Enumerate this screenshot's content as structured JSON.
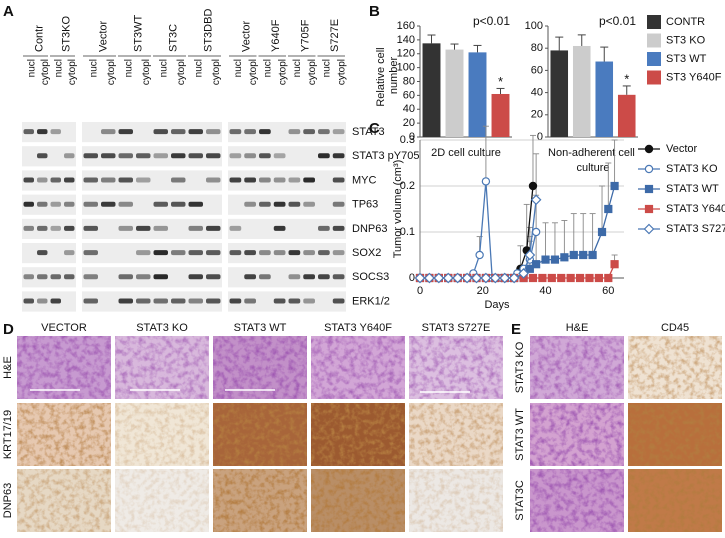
{
  "panel_labels": [
    "A",
    "B",
    "C",
    "D",
    "E"
  ],
  "blot": {
    "groups": [
      {
        "label": "Contr",
        "lanes": [
          "nucl",
          "cytopl"
        ]
      },
      {
        "label": "ST3KO",
        "lanes": [
          "nucl",
          "cytopl"
        ]
      },
      {
        "label": "Vector",
        "lanes": [
          "nucl",
          "cytopl"
        ]
      },
      {
        "label": "ST3WT",
        "lanes": [
          "nucl",
          "cytopl"
        ]
      },
      {
        "label": "ST3C",
        "lanes": [
          "nucl",
          "cytopl"
        ]
      },
      {
        "label": "ST3DBD",
        "lanes": [
          "nucl",
          "cytopl"
        ]
      },
      {
        "label": "Vector",
        "lanes": [
          "nucl",
          "cytopl"
        ]
      },
      {
        "label": "Y640F",
        "lanes": [
          "nucl",
          "cytopl"
        ]
      },
      {
        "label": "Y705F",
        "lanes": [
          "nucl",
          "cytopl"
        ]
      },
      {
        "label": "S727E",
        "lanes": [
          "nucl",
          "cytopl"
        ]
      }
    ],
    "proteins": [
      "STAT3",
      "STAT3 pY705",
      "MYC",
      "TP63",
      "DNP63",
      "SOX2",
      "SOCS3",
      "ERK1/2"
    ]
  },
  "chart_data": [
    {
      "type": "bar",
      "ylabel": "Relative cell number",
      "xlabel": "2D cell culture",
      "ylim": [
        0,
        160
      ],
      "yticks": [
        0,
        20,
        40,
        60,
        80,
        100,
        120,
        140,
        160
      ],
      "annotations": [
        "p<0.01",
        "*"
      ],
      "legend": "upper right",
      "series": [
        {
          "name": "CONTR",
          "color": "#333333",
          "values": [
            135
          ],
          "errors": [
            12
          ]
        },
        {
          "name": "ST3 KO",
          "color": "#cccccc",
          "values": [
            126
          ],
          "errors": [
            8
          ]
        },
        {
          "name": "ST3 WT",
          "color": "#4a7bbf",
          "values": [
            122
          ],
          "errors": [
            10
          ]
        },
        {
          "name": "ST3 Y640F",
          "color": "#cc4b48",
          "values": [
            62
          ],
          "errors": [
            8
          ]
        }
      ]
    },
    {
      "type": "bar",
      "xlabel": "Non-adherent cell culture",
      "ylim": [
        0,
        100
      ],
      "yticks": [
        0,
        20,
        40,
        60,
        80,
        100
      ],
      "annotations": [
        "p<0.01",
        "*"
      ],
      "series": [
        {
          "color": "#333333",
          "values": [
            78
          ],
          "errors": [
            12
          ]
        },
        {
          "color": "#cccccc",
          "values": [
            82
          ],
          "errors": [
            10
          ]
        },
        {
          "color": "#4a7bbf",
          "values": [
            68
          ],
          "errors": [
            13
          ]
        },
        {
          "color": "#cc4b48",
          "values": [
            38
          ],
          "errors": [
            8
          ]
        }
      ]
    },
    {
      "type": "line",
      "ylabel": "Tumor volume (cm³)",
      "xlabel": "Days",
      "xlim": [
        0,
        65
      ],
      "ylim": [
        0,
        0.3
      ],
      "xticks": [
        0,
        20,
        40,
        60
      ],
      "yticks": [
        0,
        0.1,
        0.2,
        0.3
      ],
      "grid": true,
      "series": [
        {
          "name": "Vector",
          "color": "#111111",
          "marker": "circle",
          "x": [
            0,
            3,
            6,
            9,
            12,
            15,
            18,
            21,
            24,
            27,
            30,
            32,
            34,
            36
          ],
          "values": [
            0,
            0,
            0,
            0,
            0,
            0,
            0,
            0,
            0,
            0,
            0,
            0.02,
            0.06,
            0.2
          ],
          "errors": [
            null,
            null,
            null,
            null,
            null,
            null,
            null,
            null,
            null,
            null,
            null,
            0.05,
            0.1,
            0.11
          ]
        },
        {
          "name": "STAT3 KO",
          "color": "#4a78b5",
          "marker": "open-circle",
          "x": [
            0,
            3,
            6,
            9,
            12,
            15,
            17,
            19,
            21,
            23,
            26,
            29,
            31,
            33,
            35,
            37
          ],
          "values": [
            0,
            0,
            0,
            0,
            0,
            0,
            0.01,
            0.05,
            0.21,
            0,
            0,
            0,
            0.01,
            0.02,
            0.04,
            0.1
          ],
          "errors": [
            null,
            null,
            null,
            null,
            null,
            null,
            null,
            0.04,
            0.12,
            null,
            null,
            null,
            null,
            null,
            0.05,
            0.08
          ]
        },
        {
          "name": "STAT3 WT",
          "color": "#3d6aa8",
          "marker": "square",
          "x": [
            0,
            3,
            6,
            9,
            12,
            15,
            18,
            21,
            24,
            27,
            30,
            33,
            35,
            37,
            40,
            43,
            46,
            49,
            52,
            55,
            58,
            60,
            62
          ],
          "values": [
            0,
            0,
            0,
            0,
            0,
            0,
            0,
            0,
            0,
            0,
            0,
            0,
            0.02,
            0.03,
            0.04,
            0.04,
            0.045,
            0.05,
            0.05,
            0.05,
            0.1,
            0.15,
            0.2
          ],
          "errors": [
            null,
            null,
            null,
            null,
            null,
            null,
            null,
            null,
            null,
            null,
            null,
            null,
            0.06,
            0.07,
            0.08,
            0.08,
            0.08,
            0.09,
            0.09,
            0.09,
            0.1,
            0.1,
            0.1
          ]
        },
        {
          "name": "STAT3 Y640F",
          "color": "#cc4b48",
          "marker": "square",
          "x": [
            0,
            3,
            6,
            9,
            12,
            15,
            18,
            21,
            24,
            27,
            30,
            33,
            36,
            39,
            42,
            45,
            48,
            51,
            54,
            57,
            60,
            62
          ],
          "values": [
            0,
            0,
            0,
            0,
            0,
            0,
            0,
            0,
            0,
            0,
            0,
            0,
            0,
            0,
            0,
            0,
            0,
            0,
            0,
            0,
            0,
            0.03
          ],
          "errors": [
            null,
            null,
            null,
            null,
            null,
            null,
            null,
            null,
            null,
            null,
            null,
            null,
            null,
            null,
            null,
            null,
            null,
            null,
            null,
            null,
            null,
            0.02
          ]
        },
        {
          "name": "STAT3 S727E",
          "color": "#4a78b5",
          "marker": "open-diamond",
          "x": [
            0,
            3,
            6,
            9,
            12,
            15,
            18,
            21,
            24,
            27,
            30,
            33,
            35,
            37
          ],
          "values": [
            0,
            0,
            0,
            0,
            0,
            0,
            0,
            0,
            0,
            0,
            0,
            0.01,
            0.05,
            0.17
          ],
          "errors": [
            null,
            null,
            null,
            null,
            null,
            null,
            null,
            null,
            null,
            null,
            null,
            null,
            0.06,
            0.1
          ]
        }
      ]
    }
  ],
  "histology": {
    "columns": [
      "VECTOR",
      "STAT3 KO",
      "STAT3 WT",
      "STAT3 Y640F",
      "STAT3 S727E"
    ],
    "rows": [
      "H&E",
      "KRT17/19",
      "DNP63"
    ]
  },
  "cd45_panel": {
    "columns": [
      "H&E",
      "CD45"
    ],
    "rows": [
      "STAT3 KO",
      "STAT3 WT",
      "STAT3C"
    ]
  }
}
